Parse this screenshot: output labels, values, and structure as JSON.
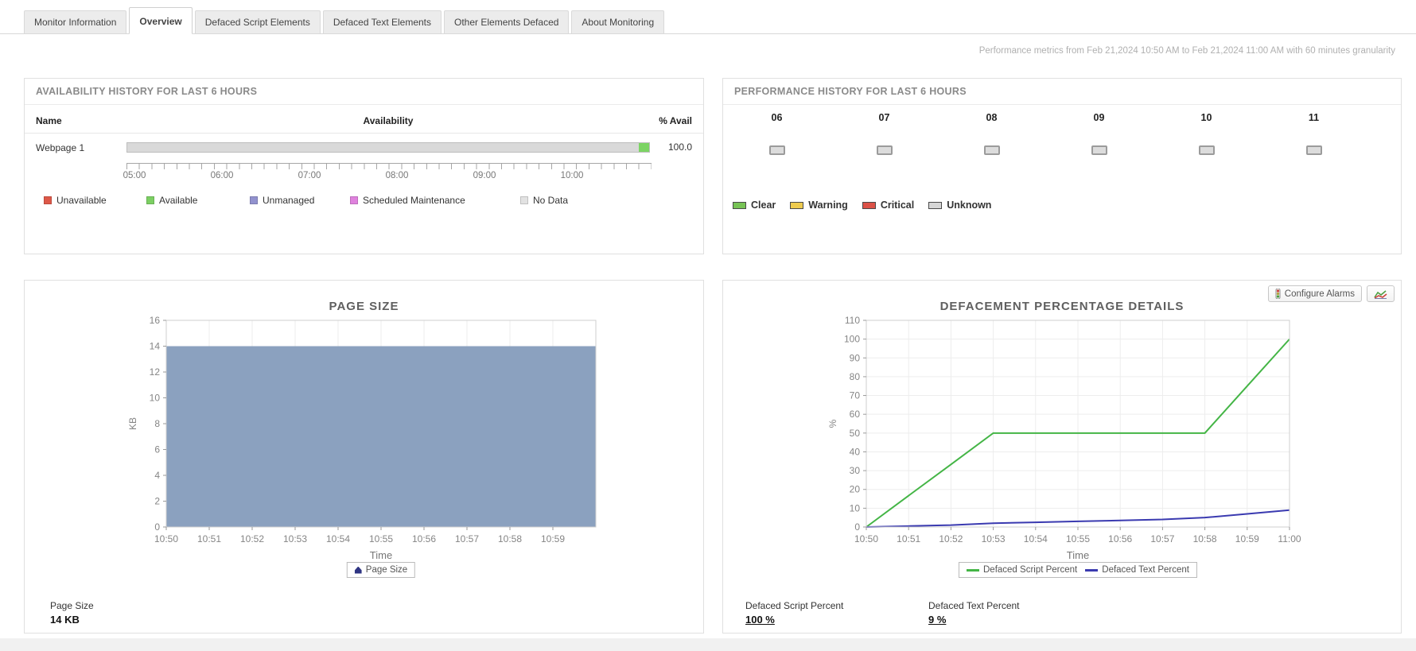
{
  "tabs": [
    {
      "label": "Monitor Information",
      "active": false
    },
    {
      "label": "Overview",
      "active": true
    },
    {
      "label": "Defaced Script Elements",
      "active": false
    },
    {
      "label": "Defaced Text Elements",
      "active": false
    },
    {
      "label": "Other Elements Defaced",
      "active": false
    },
    {
      "label": "About Monitoring",
      "active": false
    }
  ],
  "header": {
    "metrics_note": "Performance metrics from Feb 21,2024 10:50 AM to Feb 21,2024 11:00 AM with 60 minutes granularity"
  },
  "availability_panel": {
    "title": "AVAILABILITY HISTORY FOR LAST 6 HOURS",
    "columns": {
      "name": "Name",
      "availability": "Availability",
      "avail_pct": "% Avail"
    },
    "rows": [
      {
        "name": "Webpage 1",
        "avail_pct": "100.0",
        "track_color": "#d9d9d9",
        "segment_color": "#7cd464"
      }
    ],
    "time_ticks": [
      "05:00",
      "06:00",
      "07:00",
      "08:00",
      "09:00",
      "10:00"
    ],
    "legend": [
      {
        "label": "Unavailable",
        "color": "#dd5848"
      },
      {
        "label": "Available",
        "color": "#7ccf63"
      },
      {
        "label": "Unmanaged",
        "color": "#9292ce"
      },
      {
        "label": "Scheduled Maintenance",
        "color": "#df82dd"
      },
      {
        "label": "No Data",
        "color": "#e2e2e2"
      }
    ]
  },
  "performance_panel": {
    "title": "PERFORMANCE HISTORY FOR LAST 6 HOURS",
    "hours": [
      "06",
      "07",
      "08",
      "09",
      "10",
      "11"
    ],
    "legend": [
      {
        "label": "Clear",
        "color": "#77c355"
      },
      {
        "label": "Warning",
        "color": "#eecb4f"
      },
      {
        "label": "Critical",
        "color": "#dc5247"
      },
      {
        "label": "Unknown",
        "color": "#d6d6d6"
      }
    ]
  },
  "page_size_panel": {
    "summary_label": "Page Size",
    "summary_value": "14 KB",
    "legend_icon_color": "#2f3583"
  },
  "defacement_panel": {
    "configure_alarms_label": "Configure Alarms",
    "summaries": [
      {
        "label": "Defaced Script Percent",
        "value": "100 %"
      },
      {
        "label": "Defaced Text Percent",
        "value": "9 %"
      }
    ]
  },
  "chart_data": [
    {
      "type": "area",
      "title": "PAGE SIZE",
      "xlabel": "Time",
      "ylabel": "KB",
      "x": [
        "10:50",
        "10:51",
        "10:52",
        "10:53",
        "10:54",
        "10:55",
        "10:56",
        "10:57",
        "10:58",
        "10:59"
      ],
      "x_slots": 11,
      "ylim": [
        0,
        16
      ],
      "ytick_step": 2,
      "grid": "vertical",
      "legend_position": "bottom",
      "series": [
        {
          "name": "Page Size",
          "kind": "area",
          "color": "#8ba1bf",
          "values": [
            14,
            14,
            14,
            14,
            14,
            14,
            14,
            14,
            14,
            14
          ]
        }
      ]
    },
    {
      "type": "line",
      "title": "DEFACEMENT PERCENTAGE DETAILS",
      "xlabel": "Time",
      "ylabel": "%",
      "x": [
        "10:50",
        "10:51",
        "10:52",
        "10:53",
        "10:54",
        "10:55",
        "10:56",
        "10:57",
        "10:58",
        "10:59",
        "11:00"
      ],
      "x_slots": 11,
      "ylim": [
        0,
        110
      ],
      "ytick_step": 10,
      "grid": "both",
      "legend_position": "bottom",
      "series": [
        {
          "name": "Defaced Script Percent",
          "kind": "line",
          "color": "#44b546",
          "values": [
            0,
            16.7,
            33.3,
            50,
            50,
            50,
            50,
            50,
            50,
            75,
            100
          ]
        },
        {
          "name": "Defaced Text Percent",
          "kind": "line",
          "color": "#3a3ab0",
          "values": [
            0,
            0.5,
            1,
            2,
            2.5,
            3,
            3.5,
            4,
            5,
            7,
            9
          ]
        }
      ]
    }
  ]
}
